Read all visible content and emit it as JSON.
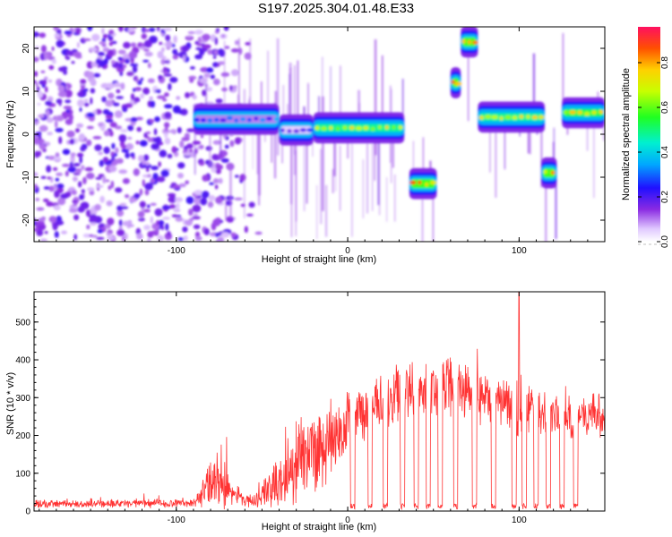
{
  "title": "S197.2025.304.01.48.E33",
  "chart_data": [
    {
      "type": "heatmap",
      "name": "spectrogram",
      "xlabel": "Height of straight line (km)",
      "ylabel": "Frequency (Hz)",
      "xlim": [
        -183,
        150
      ],
      "ylim": [
        -25,
        25
      ],
      "xticks": [
        -100,
        0,
        100
      ],
      "yticks": [
        -20,
        -10,
        0,
        10,
        20
      ],
      "colorbar": {
        "label": "Normalized spectral amplitude",
        "range": [
          0,
          0.96
        ],
        "ticks": [
          0.0,
          0.2,
          0.4,
          0.6,
          0.8
        ]
      },
      "features": [
        {
          "label": "noise",
          "x": [
            -183,
            -80
          ],
          "freq": [
            -25,
            25
          ],
          "amplitude": 0.2
        },
        {
          "label": "band",
          "x": [
            -90,
            -40
          ],
          "freq": 3.5,
          "amplitude": 0.35
        },
        {
          "label": "band",
          "x": [
            -40,
            -20
          ],
          "freq": 1,
          "amplitude": 0.3
        },
        {
          "label": "band",
          "x": [
            -20,
            33
          ],
          "freq": 1.5,
          "amplitude": 0.75
        },
        {
          "label": "tone",
          "x": [
            36,
            52
          ],
          "freq": -11.5,
          "amplitude": 0.85
        },
        {
          "label": "tone",
          "x": [
            60,
            66
          ],
          "freq": 12,
          "amplitude": 0.85
        },
        {
          "label": "tone",
          "x": [
            66,
            76
          ],
          "freq": 21.5,
          "amplitude": 0.85
        },
        {
          "label": "band",
          "x": [
            76,
            115
          ],
          "freq": 4,
          "amplitude": 0.75
        },
        {
          "label": "tone",
          "x": [
            113,
            122
          ],
          "freq": -9,
          "amplitude": 0.85
        },
        {
          "label": "band",
          "x": [
            125,
            150
          ],
          "freq": 5,
          "amplitude": 0.8
        }
      ]
    },
    {
      "type": "line",
      "name": "snr",
      "xlabel": "Height of straight line (km)",
      "ylabel": "SNR (10 * v/v)",
      "xlim": [
        -183,
        150
      ],
      "ylim": [
        0,
        580
      ],
      "xticks": [
        -100,
        0,
        100
      ],
      "yticks": [
        0,
        100,
        200,
        300,
        400,
        500
      ],
      "color": "#ff3333",
      "envelope": [
        {
          "x": -183,
          "mean": 18,
          "spread": 12
        },
        {
          "x": -90,
          "mean": 22,
          "spread": 14
        },
        {
          "x": -80,
          "mean": 70,
          "spread": 70
        },
        {
          "x": -74,
          "mean": 80,
          "spread": 110
        },
        {
          "x": -68,
          "mean": 45,
          "spread": 40
        },
        {
          "x": -55,
          "mean": 25,
          "spread": 15
        },
        {
          "x": -45,
          "mean": 60,
          "spread": 60
        },
        {
          "x": -30,
          "mean": 120,
          "spread": 120
        },
        {
          "x": -20,
          "mean": 160,
          "spread": 130
        },
        {
          "x": -10,
          "mean": 200,
          "spread": 130
        },
        {
          "x": 0,
          "mean": 240,
          "spread": 100
        },
        {
          "x": 20,
          "mean": 290,
          "spread": 80
        },
        {
          "x": 40,
          "mean": 310,
          "spread": 90
        },
        {
          "x": 60,
          "mean": 330,
          "spread": 90
        },
        {
          "x": 80,
          "mean": 290,
          "spread": 80
        },
        {
          "x": 100,
          "mean": 280,
          "spread": 90
        },
        {
          "x": 120,
          "mean": 250,
          "spread": 70
        },
        {
          "x": 150,
          "mean": 250,
          "spread": 70
        }
      ],
      "dips": [
        3,
        13,
        22,
        32,
        40,
        47,
        54,
        63,
        74,
        85,
        97,
        103,
        110,
        117,
        125,
        133
      ],
      "peak": {
        "x": 100,
        "y": 580
      }
    }
  ]
}
